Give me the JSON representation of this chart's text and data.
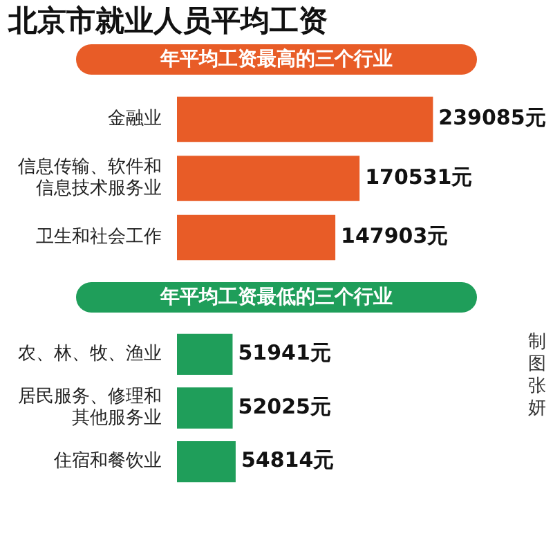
{
  "chart_data": [
    {
      "type": "bar",
      "orientation": "horizontal",
      "title": "北京市就业人员平均工资",
      "subtitle": "年平均工资最高的三个行业",
      "categories": [
        "金融业",
        "信息传输、软件和信息技术服务业",
        "卫生和社会工作"
      ],
      "values": [
        239085,
        170531,
        147903
      ],
      "color": "#e85c27",
      "value_labels": [
        "239085元",
        "170531元",
        "147903元"
      ]
    },
    {
      "type": "bar",
      "orientation": "horizontal",
      "subtitle": "年平均工资最低的三个行业",
      "categories": [
        "农、林、牧、渔业",
        "居民服务、修理和其他服务业",
        "住宿和餐饮业"
      ],
      "values": [
        51941,
        52025,
        54814
      ],
      "color": "#1f9e5a",
      "value_labels": [
        "51941元",
        "52025元",
        "54814元"
      ],
      "annotations": [
        "制图张妍"
      ]
    }
  ]
}
